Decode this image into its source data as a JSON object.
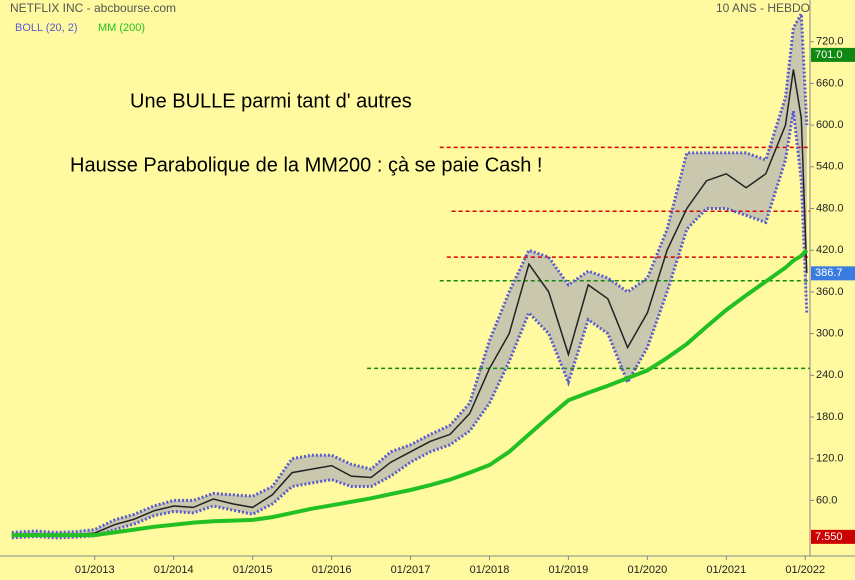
{
  "chart_data": {
    "type": "bollinger",
    "title": "NETFLIX INC - abcbourse.com",
    "subtitle": "10 ANS - HEBDO",
    "annotations": [
      "Une BULLE parmi tant d' autres",
      "Hausse Parabolique de la MM200 : çà se paie Cash !"
    ],
    "x": [
      2011.95,
      2012.25,
      2012.5,
      2012.75,
      2013.0,
      2013.25,
      2013.5,
      2013.75,
      2014.0,
      2014.25,
      2014.5,
      2014.75,
      2015.0,
      2015.25,
      2015.5,
      2015.75,
      2016.0,
      2016.25,
      2016.5,
      2016.75,
      2017.0,
      2017.25,
      2017.5,
      2017.75,
      2018.0,
      2018.25,
      2018.5,
      2018.75,
      2019.0,
      2019.25,
      2019.5,
      2019.75,
      2020.0,
      2020.25,
      2020.5,
      2020.75,
      2021.0,
      2021.25,
      2021.5,
      2021.75,
      2021.85,
      2021.95,
      2022.02
    ],
    "price": {
      "color": "#222222",
      "values": [
        10,
        12,
        9,
        11,
        13,
        25,
        33,
        45,
        52,
        50,
        62,
        55,
        50,
        68,
        100,
        105,
        110,
        95,
        93,
        115,
        130,
        145,
        155,
        185,
        250,
        300,
        400,
        360,
        270,
        370,
        350,
        280,
        330,
        420,
        480,
        520,
        530,
        510,
        530,
        600,
        680,
        610,
        387
      ]
    },
    "series": [
      {
        "name": "BOLL (20, 2)",
        "color": "#5b5bd0",
        "fill": "#c9c7ad",
        "upper": [
          14,
          16,
          14,
          15,
          18,
          32,
          40,
          52,
          60,
          60,
          70,
          68,
          66,
          80,
          120,
          125,
          125,
          112,
          105,
          130,
          140,
          155,
          168,
          200,
          290,
          360,
          420,
          410,
          370,
          390,
          380,
          360,
          380,
          450,
          560,
          560,
          560,
          560,
          550,
          640,
          740,
          760,
          600
        ],
        "lower": [
          6,
          8,
          6,
          7,
          9,
          18,
          26,
          38,
          44,
          42,
          52,
          46,
          40,
          55,
          80,
          85,
          90,
          80,
          80,
          95,
          115,
          130,
          140,
          160,
          200,
          260,
          330,
          300,
          230,
          320,
          300,
          230,
          280,
          360,
          450,
          480,
          480,
          470,
          460,
          550,
          620,
          520,
          330
        ]
      },
      {
        "name": "MM (200)",
        "color": "#22c022",
        "values": [
          10,
          10,
          10,
          10,
          10,
          14,
          18,
          22,
          25,
          28,
          30,
          31,
          32,
          36,
          42,
          48,
          53,
          58,
          63,
          69,
          75,
          82,
          90,
          100,
          111,
          130,
          155,
          180,
          204,
          215,
          225,
          236,
          247,
          265,
          285,
          310,
          334,
          355,
          375,
          395,
          405,
          412,
          420
        ]
      }
    ],
    "hlines": [
      {
        "value": 568,
        "color": "#dd0000",
        "from": 2017.37
      },
      {
        "value": 476,
        "color": "#dd0000",
        "from": 2017.52
      },
      {
        "value": 410,
        "color": "#dd0000",
        "from": 2017.46
      },
      {
        "value": 376,
        "color": "#118811",
        "from": 2017.37
      },
      {
        "value": 250,
        "color": "#118811",
        "from": 2016.45
      }
    ],
    "markers": [
      {
        "value": 701,
        "label": "701.0",
        "color": "#118811"
      },
      {
        "value": 386.7,
        "label": "386.7",
        "color": "#3a7be0"
      },
      {
        "value": 7.55,
        "label": "7.550",
        "color": "#cc0000"
      }
    ],
    "xlim": [
      2011.8,
      2022.06
    ],
    "xticks": [
      {
        "value": 2013,
        "label": "01/2013"
      },
      {
        "value": 2014,
        "label": "01/2014"
      },
      {
        "value": 2015,
        "label": "01/2015"
      },
      {
        "value": 2016,
        "label": "01/2016"
      },
      {
        "value": 2017,
        "label": "01/2017"
      },
      {
        "value": 2018,
        "label": "01/2018"
      },
      {
        "value": 2019,
        "label": "01/2019"
      },
      {
        "value": 2020,
        "label": "01/2020"
      },
      {
        "value": 2021,
        "label": "01/2021"
      },
      {
        "value": 2022,
        "label": "01/2022"
      }
    ],
    "ylim": [
      -20,
      780
    ],
    "yticks": [
      {
        "value": 60,
        "label": "60.0"
      },
      {
        "value": 120,
        "label": "120.0"
      },
      {
        "value": 180,
        "label": "180.0"
      },
      {
        "value": 240,
        "label": "240.0"
      },
      {
        "value": 300,
        "label": "300.0"
      },
      {
        "value": 360,
        "label": "360.0"
      },
      {
        "value": 420,
        "label": "420.0"
      },
      {
        "value": 480,
        "label": "480.0"
      },
      {
        "value": 540,
        "label": "540.0"
      },
      {
        "value": 600,
        "label": "600.0"
      },
      {
        "value": 660,
        "label": "660.0"
      },
      {
        "value": 720,
        "label": "720.0"
      }
    ]
  }
}
